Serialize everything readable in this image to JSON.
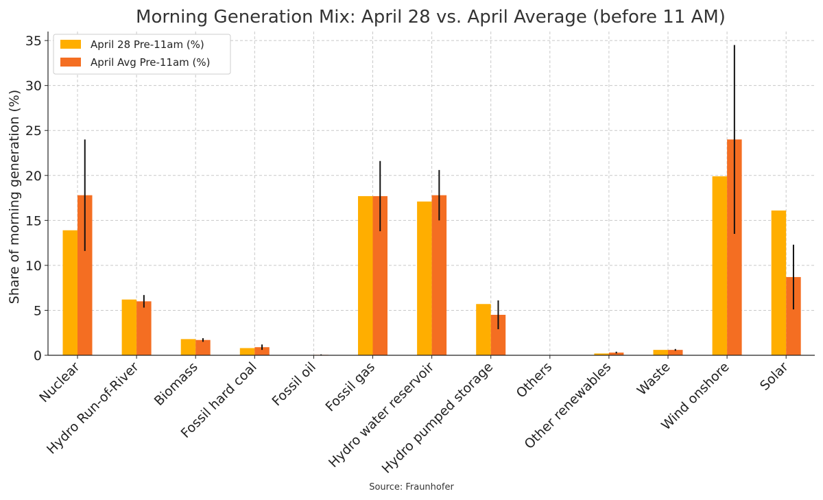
{
  "chart_data": {
    "type": "bar",
    "title": "Morning Generation Mix: April 28 vs. April Average (before 11 AM)",
    "xlabel": "",
    "ylabel": "Share of morning generation (%)",
    "ylim": [
      0,
      36
    ],
    "yticks": [
      0,
      5,
      10,
      15,
      20,
      25,
      30,
      35
    ],
    "grid": true,
    "legend_position": "top-left",
    "source": "Source: Fraunhofer",
    "categories": [
      "Nuclear",
      "Hydro Run-of-River",
      "Biomass",
      "Fossil hard coal",
      "Fossil oil",
      "Fossil gas",
      "Hydro water reservoir",
      "Hydro pumped storage",
      "Others",
      "Other renewables",
      "Waste",
      "Wind onshore",
      "Solar"
    ],
    "series": [
      {
        "name": "April 28 Pre-11am (%)",
        "color": "#FFAE00",
        "values": [
          13.9,
          6.2,
          1.8,
          0.8,
          0.0,
          17.7,
          17.1,
          5.7,
          0.0,
          0.2,
          0.6,
          19.9,
          16.1
        ]
      },
      {
        "name": "April Avg Pre-11am (%)",
        "color": "#F46E22",
        "values": [
          17.8,
          6.0,
          1.7,
          0.9,
          0.05,
          17.7,
          17.8,
          4.5,
          0.0,
          0.3,
          0.6,
          24.0,
          8.7
        ],
        "error": [
          6.2,
          0.7,
          0.2,
          0.3,
          0.05,
          3.9,
          2.8,
          1.6,
          0.0,
          0.1,
          0.1,
          10.5,
          3.6
        ]
      }
    ]
  }
}
